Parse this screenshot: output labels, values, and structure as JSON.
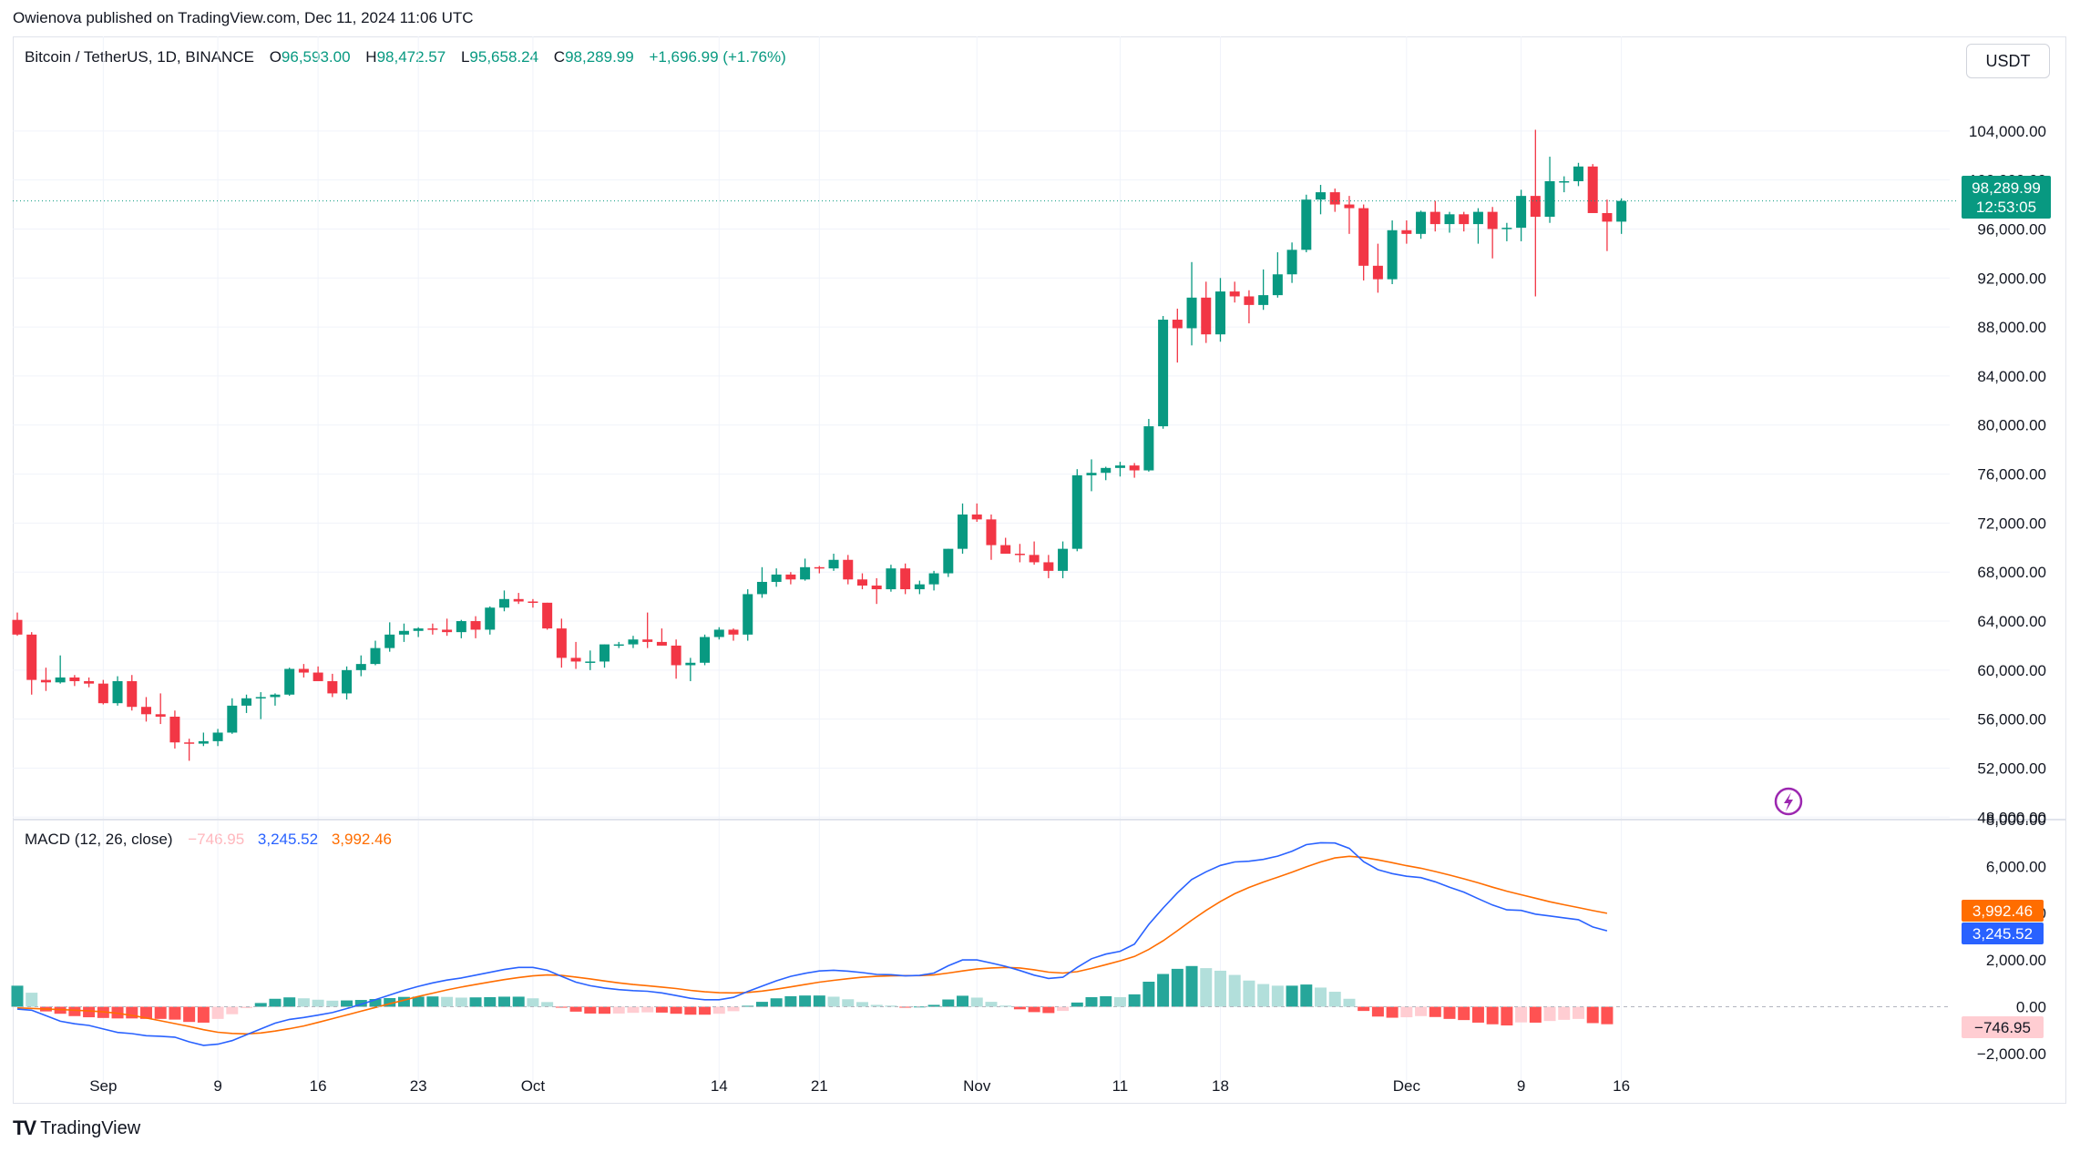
{
  "header": {
    "published": "Owienova published on TradingView.com, Dec 11, 2024 11:06 UTC"
  },
  "legend": {
    "symbol": "Bitcoin / TetherUS, 1D, BINANCE",
    "o_label": "O",
    "o": "96,593.00",
    "h_label": "H",
    "h": "98,472.57",
    "l_label": "L",
    "l": "95,658.24",
    "c_label": "C",
    "c": "98,289.99",
    "change": "+1,696.99 (+1.76%)"
  },
  "unit_button": "USDT",
  "price_badge": {
    "price": "98,289.99",
    "countdown": "12:53:05"
  },
  "macd_legend": {
    "name": "MACD (12, 26, close)",
    "hist": "−746.95",
    "macd": "3,245.52",
    "signal": "3,992.46"
  },
  "macd_badges": {
    "signal": "3,992.46",
    "macd": "3,245.52",
    "hist": "−746.95"
  },
  "brand": {
    "text": "TradingView",
    "logo": "TV"
  },
  "colors": {
    "up": "#089981",
    "down": "#f23645",
    "macd": "#2962ff",
    "signal": "#ff6d00",
    "hist_up_strong": "#26a69a",
    "hist_up_weak": "#b2dfdb",
    "hist_down_strong": "#ff5252",
    "hist_down_weak": "#ffcdd2"
  },
  "icons": {
    "lightning": "lightning-icon"
  },
  "chart_data": [
    {
      "type": "candlestick",
      "title": "Bitcoin / TetherUS, 1D, BINANCE",
      "x_ticks": [
        {
          "label": "Sep",
          "index": 6
        },
        {
          "label": "9",
          "index": 14
        },
        {
          "label": "16",
          "index": 21
        },
        {
          "label": "23",
          "index": 28
        },
        {
          "label": "Oct",
          "index": 36
        },
        {
          "label": "14",
          "index": 49
        },
        {
          "label": "21",
          "index": 56
        },
        {
          "label": "Nov",
          "index": 67
        },
        {
          "label": "11",
          "index": 77
        },
        {
          "label": "18",
          "index": 84
        },
        {
          "label": "Dec",
          "index": 97
        },
        {
          "label": "9",
          "index": 105
        },
        {
          "label": "16",
          "index": 112
        }
      ],
      "y_ticks": [
        48000,
        52000,
        56000,
        60000,
        64000,
        68000,
        72000,
        76000,
        80000,
        84000,
        88000,
        92000,
        96000,
        100000,
        104000
      ],
      "y_tick_labels": [
        "48,000.00",
        "52,000.00",
        "56,000.00",
        "60,000.00",
        "64,000.00",
        "68,000.00",
        "72,000.00",
        "76,000.00",
        "80,000.00",
        "84,000.00",
        "88,000.00",
        "92,000.00",
        "96,000.00",
        "100,000.00",
        "104,000.00"
      ],
      "ylim": [
        47800,
        108000
      ],
      "last_price": 98289.99,
      "candles": [
        [
          64100,
          64700,
          62800,
          62900
        ],
        [
          62900,
          63100,
          58000,
          59200
        ],
        [
          59200,
          60200,
          58300,
          59000
        ],
        [
          59000,
          61200,
          58900,
          59400
        ],
        [
          59400,
          59600,
          58700,
          59100
        ],
        [
          59100,
          59400,
          58600,
          58900
        ],
        [
          58900,
          59200,
          57200,
          57300
        ],
        [
          57300,
          59500,
          57100,
          59100
        ],
        [
          59100,
          59600,
          56700,
          57000
        ],
        [
          57000,
          57800,
          55800,
          56400
        ],
        [
          56400,
          58100,
          55600,
          56200
        ],
        [
          56200,
          56700,
          53600,
          54100
        ],
        [
          54100,
          54400,
          52600,
          54000
        ],
        [
          54000,
          54900,
          53800,
          54200
        ],
        [
          54200,
          55200,
          53800,
          54900
        ],
        [
          54900,
          57700,
          54800,
          57100
        ],
        [
          57100,
          58000,
          56500,
          57700
        ],
        [
          57700,
          58200,
          56000,
          57800
        ],
        [
          57800,
          58100,
          57100,
          58000
        ],
        [
          58000,
          60200,
          57900,
          60100
        ],
        [
          60100,
          60500,
          59400,
          59800
        ],
        [
          59800,
          60300,
          59200,
          59100
        ],
        [
          59100,
          59700,
          57800,
          58100
        ],
        [
          58100,
          60300,
          57600,
          60000
        ],
        [
          60000,
          61200,
          59500,
          60500
        ],
        [
          60500,
          62400,
          60400,
          61800
        ],
        [
          61800,
          63900,
          61500,
          62900
        ],
        [
          62900,
          63800,
          62300,
          63200
        ],
        [
          63200,
          63500,
          62700,
          63400
        ],
        [
          63400,
          63800,
          62900,
          63300
        ],
        [
          63300,
          64200,
          62800,
          63100
        ],
        [
          63100,
          64100,
          62600,
          64000
        ],
        [
          64000,
          64400,
          62600,
          63300
        ],
        [
          63300,
          65200,
          62900,
          65100
        ],
        [
          65100,
          66500,
          64800,
          65800
        ],
        [
          65800,
          66300,
          65400,
          65600
        ],
        [
          65600,
          65800,
          65100,
          65500
        ],
        [
          65500,
          65500,
          63300,
          63400
        ],
        [
          63400,
          64200,
          60200,
          61000
        ],
        [
          61000,
          62300,
          60100,
          60700
        ],
        [
          60700,
          61600,
          60000,
          60700
        ],
        [
          60700,
          62100,
          60200,
          62100
        ],
        [
          62100,
          62300,
          61800,
          62100
        ],
        [
          62100,
          62800,
          61800,
          62500
        ],
        [
          62500,
          64700,
          61800,
          62300
        ],
        [
          62300,
          63400,
          62000,
          62000
        ],
        [
          62000,
          62500,
          59300,
          60400
        ],
        [
          60400,
          61000,
          59100,
          60600
        ],
        [
          60600,
          62900,
          60400,
          62700
        ],
        [
          62700,
          63500,
          62500,
          63300
        ],
        [
          63300,
          63400,
          62400,
          62900
        ],
        [
          62900,
          66600,
          62400,
          66200
        ],
        [
          66200,
          68400,
          65900,
          67200
        ],
        [
          67200,
          68300,
          66800,
          67800
        ],
        [
          67800,
          68000,
          67000,
          67400
        ],
        [
          67400,
          69100,
          67300,
          68400
        ],
        [
          68400,
          68500,
          67900,
          68300
        ],
        [
          68300,
          69500,
          68100,
          69000
        ],
        [
          69000,
          69400,
          67000,
          67400
        ],
        [
          67400,
          67900,
          66600,
          66900
        ],
        [
          66900,
          67500,
          65400,
          66600
        ],
        [
          66600,
          68600,
          66400,
          68300
        ],
        [
          68300,
          68700,
          66200,
          66600
        ],
        [
          66600,
          67300,
          66200,
          67000
        ],
        [
          67000,
          68100,
          66500,
          67900
        ],
        [
          67900,
          69900,
          67600,
          69900
        ],
        [
          69900,
          73600,
          69500,
          72700
        ],
        [
          72700,
          73600,
          72100,
          72300
        ],
        [
          72300,
          72700,
          69000,
          70200
        ],
        [
          70200,
          70800,
          69500,
          69500
        ],
        [
          69500,
          70300,
          68800,
          69400
        ],
        [
          69400,
          70500,
          68600,
          68800
        ],
        [
          68800,
          69400,
          67500,
          68100
        ],
        [
          68100,
          70500,
          67500,
          69900
        ],
        [
          69900,
          76400,
          69700,
          75900
        ],
        [
          75900,
          77200,
          74600,
          76100
        ],
        [
          76100,
          76600,
          75500,
          76500
        ],
        [
          76500,
          77000,
          75800,
          76700
        ],
        [
          76700,
          76900,
          75700,
          76300
        ],
        [
          76300,
          80500,
          76200,
          79900
        ],
        [
          79900,
          88900,
          79700,
          88600
        ],
        [
          88600,
          89500,
          85100,
          87900
        ],
        [
          87900,
          93300,
          86500,
          90400
        ],
        [
          90400,
          91700,
          86700,
          87400
        ],
        [
          87400,
          92000,
          86800,
          90900
        ],
        [
          90900,
          91700,
          90000,
          90500
        ],
        [
          90500,
          91000,
          88300,
          89800
        ],
        [
          89800,
          92700,
          89400,
          90600
        ],
        [
          90600,
          94100,
          90400,
          92300
        ],
        [
          92300,
          94900,
          91600,
          94300
        ],
        [
          94300,
          98800,
          94100,
          98400
        ],
        [
          98400,
          99600,
          97200,
          99000
        ],
        [
          99000,
          99300,
          97400,
          98000
        ],
        [
          98000,
          98700,
          95600,
          97700
        ],
        [
          97700,
          98000,
          91800,
          93000
        ],
        [
          93000,
          94800,
          90800,
          91900
        ],
        [
          91900,
          96700,
          91500,
          95900
        ],
        [
          95900,
          96700,
          94800,
          95600
        ],
        [
          95600,
          97500,
          95200,
          97400
        ],
        [
          97400,
          98300,
          95800,
          96400
        ],
        [
          96400,
          97400,
          95700,
          97200
        ],
        [
          97200,
          97400,
          95800,
          96400
        ],
        [
          96400,
          97700,
          94800,
          97400
        ],
        [
          97400,
          97800,
          93600,
          96000
        ],
        [
          96000,
          96500,
          95000,
          96100
        ],
        [
          96100,
          99200,
          95000,
          98700
        ],
        [
          98700,
          104100,
          90500,
          97000
        ],
        [
          97000,
          101900,
          96500,
          99900
        ],
        [
          99900,
          100300,
          99000,
          99900
        ],
        [
          99900,
          101400,
          99500,
          101100
        ],
        [
          101100,
          101300,
          97500,
          97300
        ],
        [
          97300,
          98400,
          94200,
          96600
        ],
        [
          96600,
          98500,
          95600,
          98290
        ]
      ]
    },
    {
      "type": "line",
      "title": "MACD (12, 26, close)",
      "y_ticks": [
        -2000,
        0,
        2000,
        4000,
        6000,
        8000
      ],
      "y_tick_labels": [
        "−2,000.00",
        "0.00",
        "2,000.00",
        "4,000.00",
        "6,000.00",
        "8,000.00"
      ],
      "ylim": [
        -2200,
        8000
      ],
      "series": [
        {
          "name": "MACD",
          "values": [
            -100,
            -150,
            -380,
            -620,
            -730,
            -800,
            -950,
            -1100,
            -1150,
            -1240,
            -1260,
            -1300,
            -1500,
            -1650,
            -1600,
            -1450,
            -1200,
            -950,
            -700,
            -540,
            -460,
            -360,
            -250,
            -80,
            100,
            300,
            500,
            700,
            870,
            1020,
            1140,
            1230,
            1350,
            1470,
            1590,
            1680,
            1680,
            1560,
            1300,
            1050,
            900,
            800,
            730,
            690,
            660,
            590,
            480,
            360,
            300,
            300,
            400,
            650,
            880,
            1110,
            1300,
            1430,
            1530,
            1560,
            1520,
            1460,
            1380,
            1370,
            1320,
            1340,
            1440,
            1750,
            2000,
            2000,
            1870,
            1730,
            1550,
            1350,
            1210,
            1260,
            1680,
            2050,
            2250,
            2370,
            2680,
            3520,
            4220,
            4870,
            5440,
            5770,
            6040,
            6190,
            6220,
            6300,
            6440,
            6650,
            6930,
            7010,
            7000,
            6770,
            6200,
            5860,
            5690,
            5580,
            5520,
            5340,
            5110,
            4900,
            4620,
            4350,
            4140,
            4120,
            3960,
            3880,
            3800,
            3720,
            3410,
            3245.52
          ]
        },
        {
          "name": "Signal",
          "values": [
            -50,
            -70,
            -100,
            -120,
            -150,
            -180,
            -220,
            -280,
            -370,
            -480,
            -600,
            -720,
            -840,
            -980,
            -1090,
            -1140,
            -1160,
            -1120,
            -1040,
            -940,
            -820,
            -670,
            -510,
            -350,
            -190,
            -30,
            130,
            280,
            440,
            580,
            720,
            840,
            950,
            1060,
            1160,
            1250,
            1320,
            1360,
            1340,
            1270,
            1190,
            1100,
            1020,
            950,
            900,
            840,
            780,
            700,
            640,
            600,
            590,
            610,
            670,
            750,
            850,
            950,
            1050,
            1130,
            1200,
            1260,
            1300,
            1320,
            1330,
            1330,
            1360,
            1440,
            1530,
            1610,
            1660,
            1680,
            1660,
            1580,
            1480,
            1440,
            1500,
            1640,
            1800,
            1960,
            2150,
            2450,
            2820,
            3250,
            3700,
            4120,
            4500,
            4830,
            5100,
            5330,
            5540,
            5750,
            5980,
            6190,
            6360,
            6430,
            6380,
            6280,
            6160,
            6030,
            5920,
            5780,
            5630,
            5470,
            5300,
            5110,
            4940,
            4790,
            4640,
            4490,
            4360,
            4240,
            4110,
            3992.46
          ]
        },
        {
          "name": "Histogram",
          "values": [
            900,
            600,
            -200,
            -300,
            -400,
            -450,
            -480,
            -500,
            -500,
            -520,
            -520,
            -550,
            -650,
            -680,
            -520,
            -320,
            -60,
            160,
            340,
            400,
            360,
            300,
            260,
            270,
            290,
            330,
            370,
            420,
            430,
            440,
            420,
            390,
            400,
            410,
            430,
            430,
            360,
            200,
            -40,
            -210,
            -290,
            -300,
            -290,
            -260,
            -240,
            -250,
            -300,
            -340,
            -340,
            -300,
            -190,
            40,
            210,
            360,
            450,
            480,
            480,
            430,
            320,
            200,
            80,
            50,
            -10,
            10,
            80,
            310,
            470,
            390,
            210,
            50,
            -110,
            -230,
            -270,
            -180,
            180,
            410,
            450,
            410,
            530,
            1070,
            1400,
            1620,
            1740,
            1650,
            1540,
            1360,
            1120,
            970,
            900,
            900,
            950,
            820,
            640,
            340,
            -180,
            -420,
            -470,
            -450,
            -400,
            -440,
            -520,
            -570,
            -680,
            -750,
            -800,
            -670,
            -680,
            -610,
            -560,
            -520,
            -700,
            -746.95
          ]
        }
      ],
      "x_ticks_shared": true
    }
  ]
}
